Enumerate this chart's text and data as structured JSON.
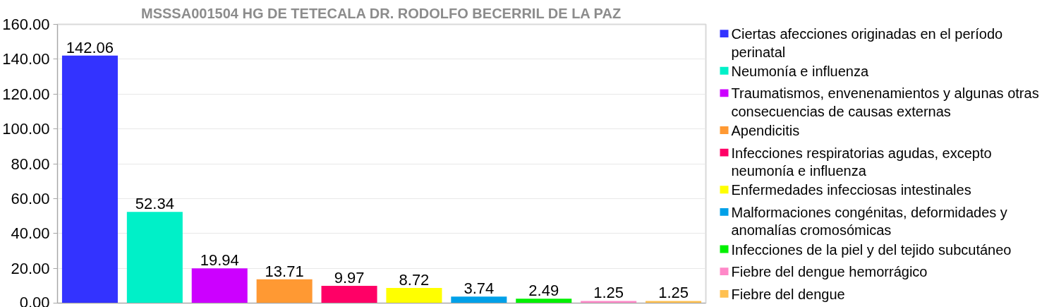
{
  "chart_data": {
    "type": "bar",
    "title": "MSSSA001504 HG DE TETECALA DR. RODOLFO BECERRIL DE LA PAZ",
    "categories": [
      null,
      null,
      null,
      null,
      null,
      null,
      null,
      null,
      null,
      null
    ],
    "series": [
      {
        "name": "Ciertas afecciones originadas en el período perinatal",
        "color": "#3333ff",
        "values": [
          142.06,
          null,
          null,
          null,
          null,
          null,
          null,
          null,
          null,
          null
        ]
      },
      {
        "name": "Neumonía e influenza",
        "color": "#00f0c8",
        "values": [
          null,
          52.34,
          null,
          null,
          null,
          null,
          null,
          null,
          null,
          null
        ]
      },
      {
        "name": "Traumatismos, envenenamientos y algunas otras consecuencias de causas externas",
        "color": "#cc00ff",
        "values": [
          null,
          null,
          19.94,
          null,
          null,
          null,
          null,
          null,
          null,
          null
        ]
      },
      {
        "name": "Apendicitis",
        "color": "#ff9933",
        "values": [
          null,
          null,
          null,
          13.71,
          null,
          null,
          null,
          null,
          null,
          null
        ]
      },
      {
        "name": "Infecciones respiratorias agudas, excepto neumonía e influenza",
        "color": "#ff0066",
        "values": [
          null,
          null,
          null,
          null,
          9.97,
          null,
          null,
          null,
          null,
          null
        ]
      },
      {
        "name": "Enfermedades infecciosas intestinales",
        "color": "#ffff00",
        "values": [
          null,
          null,
          null,
          null,
          null,
          8.72,
          null,
          null,
          null,
          null
        ]
      },
      {
        "name": "Malformaciones congénitas, deformidades y anomalías cromosómicas",
        "color": "#00a0e8",
        "values": [
          null,
          null,
          null,
          null,
          null,
          null,
          3.74,
          null,
          null,
          null
        ]
      },
      {
        "name": "Infecciones de la piel y del tejido subcutáneo",
        "color": "#00f000",
        "values": [
          null,
          null,
          null,
          null,
          null,
          null,
          null,
          2.49,
          null,
          null
        ]
      },
      {
        "name": "Fiebre del dengue hemorrágico",
        "color": "#ff88c8",
        "values": [
          null,
          null,
          null,
          null,
          null,
          null,
          null,
          null,
          1.25,
          null
        ]
      },
      {
        "name": "Fiebre del dengue",
        "color": "#ffc050",
        "values": [
          null,
          null,
          null,
          null,
          null,
          null,
          null,
          null,
          null,
          1.25
        ]
      }
    ],
    "ylim": [
      0,
      160
    ],
    "yticks": [
      {
        "value": 0,
        "label": "0.00"
      },
      {
        "value": 20,
        "label": "20.00"
      },
      {
        "value": 40,
        "label": "40.00"
      },
      {
        "value": 60,
        "label": "60.00"
      },
      {
        "value": 80,
        "label": "80.00"
      },
      {
        "value": 100,
        "label": "100.00"
      },
      {
        "value": 120,
        "label": "120.00"
      },
      {
        "value": 140,
        "label": "140.00"
      },
      {
        "value": 160,
        "label": "160.00"
      }
    ],
    "grid": "y",
    "legend": "right",
    "data_labels": true,
    "tick_labels": "y"
  }
}
